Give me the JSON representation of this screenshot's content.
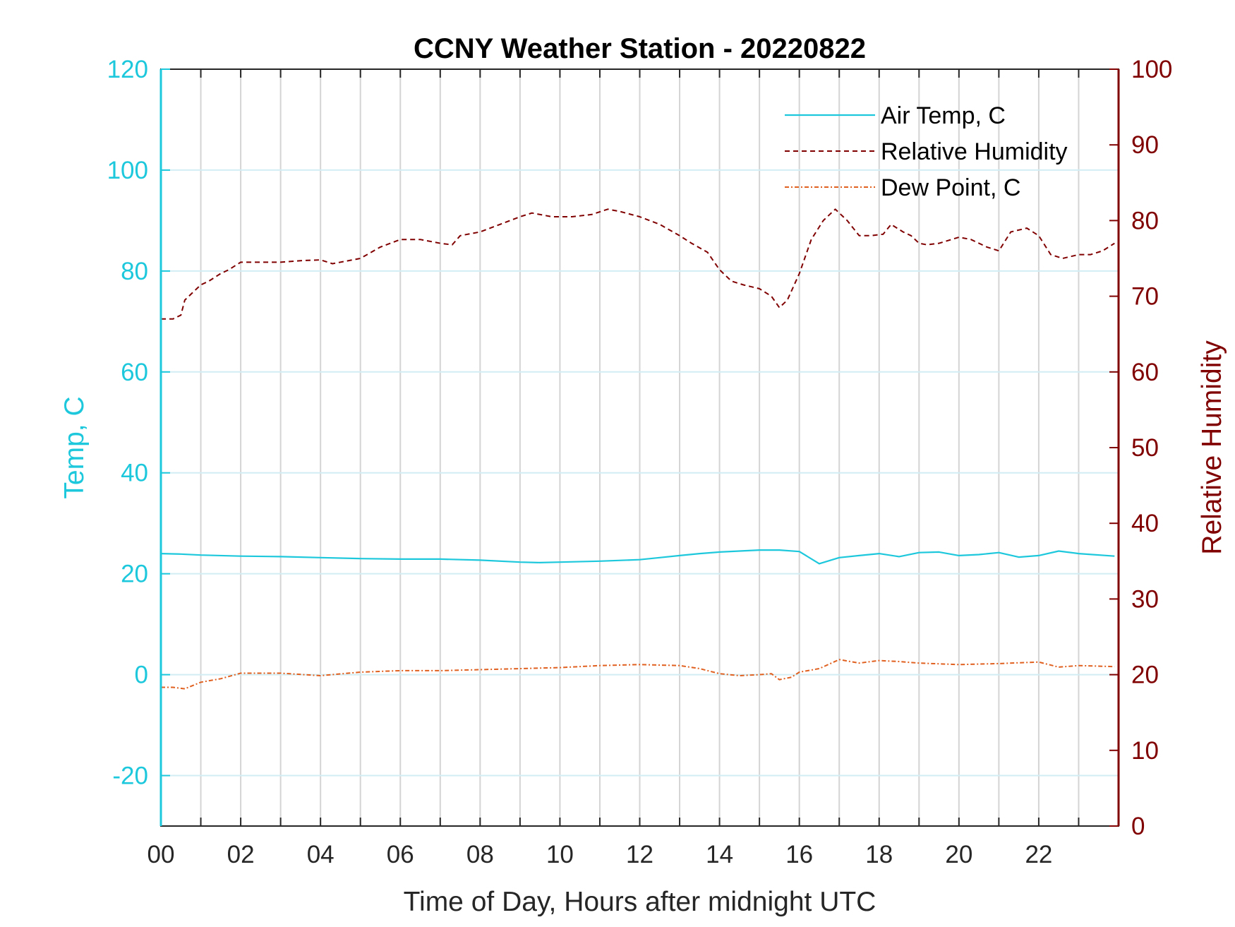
{
  "chart_data": {
    "type": "line",
    "title": "CCNY Weather Station - 20220822",
    "xlabel": "Time of Day, Hours after midnight UTC",
    "ylabel_left": "Temp, C",
    "ylabel_right": "Relative Humidity",
    "xlim": [
      0,
      24
    ],
    "ylim_left": [
      -30,
      120
    ],
    "ylim_right": [
      0,
      100
    ],
    "x_ticks": [
      0,
      2,
      4,
      6,
      8,
      10,
      12,
      14,
      16,
      18,
      20,
      22
    ],
    "x_tick_labels": [
      "00",
      "02",
      "04",
      "06",
      "08",
      "10",
      "12",
      "14",
      "16",
      "18",
      "20",
      "22"
    ],
    "y_left_ticks": [
      -20,
      0,
      20,
      40,
      60,
      80,
      100,
      120
    ],
    "y_left_tick_labels": [
      "-20",
      "0",
      "20",
      "40",
      "60",
      "80",
      "100",
      "120"
    ],
    "y_right_ticks": [
      0,
      10,
      20,
      30,
      40,
      50,
      60,
      70,
      80,
      90,
      100
    ],
    "y_right_tick_labels": [
      "0",
      "10",
      "20",
      "30",
      "40",
      "50",
      "60",
      "70",
      "80",
      "90",
      "100"
    ],
    "grid": "vertical lines every hour; horizontal lines at left-axis ticks",
    "legend_position": "top-right",
    "colors": {
      "left_axis": "#1ec8dc",
      "right_axis": "#800000",
      "air_temp": "#1ec8dc",
      "humidity": "#800000",
      "dew_point": "#e06020",
      "grid_vertical": "#d4d4d4",
      "grid_horizontal": "#d2eef4"
    },
    "series": [
      {
        "name": "Air Temp, C",
        "axis": "left",
        "style": "solid",
        "x": [
          0,
          0.5,
          1,
          2,
          3,
          4,
          5,
          6,
          7,
          8,
          9,
          9.5,
          10,
          11,
          12,
          12.5,
          13,
          13.5,
          14,
          14.5,
          15,
          15.5,
          16,
          16.5,
          17,
          17.5,
          18,
          18.5,
          19,
          19.5,
          20,
          20.5,
          21,
          21.5,
          22,
          22.5,
          23,
          23.9
        ],
        "y": [
          24.0,
          23.9,
          23.7,
          23.5,
          23.4,
          23.2,
          23.0,
          22.9,
          22.9,
          22.7,
          22.3,
          22.2,
          22.3,
          22.5,
          22.8,
          23.2,
          23.6,
          24.0,
          24.3,
          24.5,
          24.7,
          24.7,
          24.4,
          22.0,
          23.2,
          23.6,
          24.0,
          23.4,
          24.2,
          24.3,
          23.6,
          23.8,
          24.2,
          23.3,
          23.6,
          24.5,
          24.0,
          23.5
        ]
      },
      {
        "name": "Relative Humidity",
        "axis": "right",
        "style": "dashed",
        "x": [
          0,
          0.3,
          0.5,
          0.6,
          0.8,
          1.0,
          1.2,
          1.5,
          1.7,
          2.0,
          2.3,
          3.0,
          3.5,
          4.0,
          4.3,
          5.0,
          5.5,
          6.0,
          6.5,
          7.0,
          7.3,
          7.5,
          8.0,
          8.5,
          9.0,
          9.3,
          9.8,
          10.3,
          10.8,
          11.2,
          11.5,
          12.0,
          12.5,
          13.0,
          13.3,
          13.7,
          14.0,
          14.3,
          14.6,
          15.0,
          15.3,
          15.5,
          15.7,
          16.0,
          16.3,
          16.6,
          16.9,
          17.2,
          17.5,
          17.8,
          18.1,
          18.3,
          18.6,
          18.8,
          19.0,
          19.2,
          19.5,
          20.0,
          20.3,
          20.7,
          21.0,
          21.3,
          21.7,
          22.0,
          22.3,
          22.6,
          23.0,
          23.3,
          23.6,
          23.9
        ],
        "y": [
          67.0,
          67.0,
          67.5,
          69.5,
          70.5,
          71.5,
          72.0,
          73.0,
          73.5,
          74.5,
          74.5,
          74.5,
          74.7,
          74.8,
          74.3,
          75.0,
          76.5,
          77.5,
          77.5,
          77.0,
          76.8,
          78.0,
          78.5,
          79.5,
          80.5,
          81.0,
          80.5,
          80.5,
          80.8,
          81.5,
          81.2,
          80.5,
          79.5,
          78.0,
          77.0,
          75.8,
          73.5,
          72.0,
          71.5,
          71.0,
          70.0,
          68.5,
          69.5,
          73.0,
          77.5,
          80.0,
          81.5,
          80.0,
          78.0,
          78.0,
          78.2,
          79.5,
          78.5,
          78.0,
          77.0,
          76.8,
          77.0,
          77.8,
          77.5,
          76.5,
          76.0,
          78.5,
          79.0,
          78.0,
          75.5,
          75.0,
          75.5,
          75.5,
          76.0,
          77.0
        ]
      },
      {
        "name": "Dew Point, C",
        "axis": "left",
        "style": "dash-dot",
        "x": [
          0,
          0.3,
          0.6,
          1.0,
          1.5,
          2.0,
          3.0,
          4.0,
          5.0,
          6.0,
          7.0,
          8.0,
          9.0,
          10.0,
          11.0,
          12.0,
          13.0,
          13.5,
          14.0,
          14.5,
          15.0,
          15.3,
          15.5,
          15.8,
          16.0,
          16.5,
          17.0,
          17.5,
          18.0,
          18.5,
          19.0,
          20.0,
          21.0,
          22.0,
          22.5,
          23.0,
          23.9
        ],
        "y": [
          -2.5,
          -2.5,
          -2.8,
          -1.5,
          -0.8,
          0.3,
          0.3,
          -0.2,
          0.5,
          0.8,
          0.8,
          1.0,
          1.2,
          1.4,
          1.8,
          2.0,
          1.8,
          1.2,
          0.2,
          -0.2,
          0.0,
          0.2,
          -1.0,
          -0.5,
          0.5,
          1.2,
          3.0,
          2.3,
          2.8,
          2.6,
          2.3,
          2.0,
          2.2,
          2.5,
          1.5,
          1.8,
          1.6
        ]
      }
    ]
  }
}
